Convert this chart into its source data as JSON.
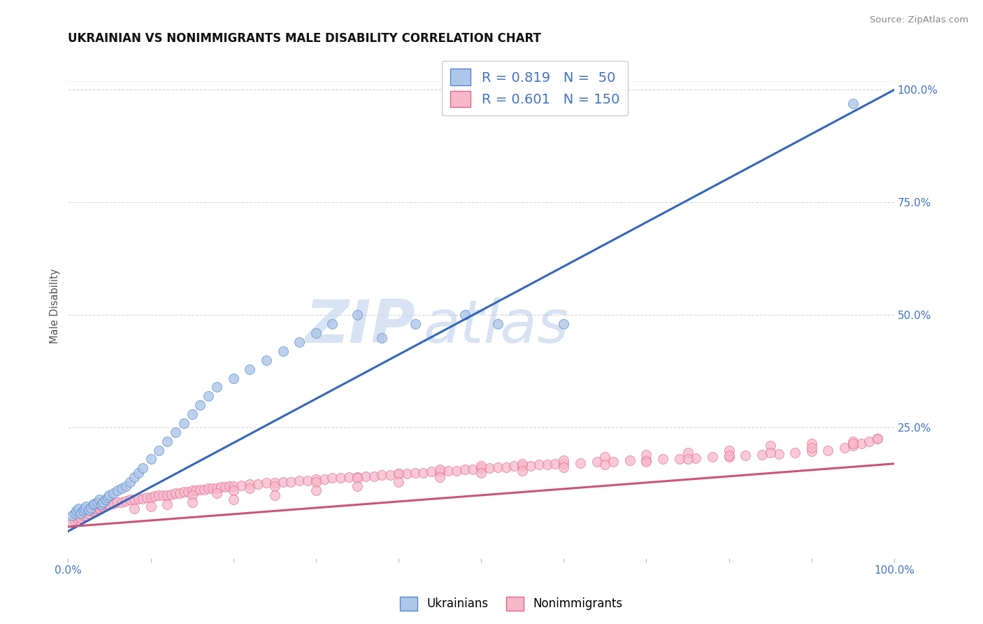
{
  "title": "UKRAINIAN VS NONIMMIGRANTS MALE DISABILITY CORRELATION CHART",
  "source_text": "Source: ZipAtlas.com",
  "ylabel": "Male Disability",
  "background_color": "#ffffff",
  "grid_color": "#cccccc",
  "title_fontsize": 12,
  "tick_label_color": "#4472c4",
  "ukrainian_color": "#aec6e8",
  "ukrainian_edge_color": "#5588cc",
  "ukrainian_line_color": "#3366bb",
  "nonimmigrant_color": "#f8b8cc",
  "nonimmigrant_edge_color": "#dd6688",
  "nonimmigrant_line_color": "#cc5577",
  "R_ukrainian": 0.819,
  "N_ukrainian": 50,
  "R_nonimmigrant": 0.601,
  "N_nonimmigrant": 150,
  "ukr_line_x0": 0.0,
  "ukr_line_y0": 0.02,
  "ukr_line_x1": 1.0,
  "ukr_line_y1": 1.0,
  "nonimm_line_x0": 0.0,
  "nonimm_line_y0": 0.03,
  "nonimm_line_x1": 1.0,
  "nonimm_line_y1": 0.17,
  "xlim": [
    0.0,
    1.0
  ],
  "ylim": [
    -0.04,
    1.08
  ],
  "ukr_scatter_x": [
    0.005,
    0.008,
    0.01,
    0.012,
    0.015,
    0.018,
    0.02,
    0.022,
    0.025,
    0.028,
    0.03,
    0.032,
    0.035,
    0.038,
    0.04,
    0.042,
    0.045,
    0.048,
    0.05,
    0.055,
    0.06,
    0.065,
    0.07,
    0.075,
    0.08,
    0.085,
    0.09,
    0.1,
    0.11,
    0.12,
    0.13,
    0.14,
    0.15,
    0.16,
    0.17,
    0.18,
    0.2,
    0.22,
    0.24,
    0.26,
    0.28,
    0.3,
    0.32,
    0.35,
    0.38,
    0.42,
    0.48,
    0.52,
    0.6,
    0.95
  ],
  "ukr_scatter_y": [
    0.055,
    0.06,
    0.065,
    0.07,
    0.06,
    0.065,
    0.07,
    0.075,
    0.068,
    0.072,
    0.08,
    0.082,
    0.085,
    0.09,
    0.08,
    0.085,
    0.09,
    0.095,
    0.1,
    0.105,
    0.11,
    0.115,
    0.12,
    0.13,
    0.14,
    0.15,
    0.16,
    0.18,
    0.2,
    0.22,
    0.24,
    0.26,
    0.28,
    0.3,
    0.32,
    0.34,
    0.36,
    0.38,
    0.4,
    0.42,
    0.44,
    0.46,
    0.48,
    0.5,
    0.45,
    0.48,
    0.5,
    0.48,
    0.48,
    0.97
  ],
  "nonimm_scatter_x": [
    0.005,
    0.007,
    0.01,
    0.012,
    0.015,
    0.018,
    0.02,
    0.022,
    0.025,
    0.028,
    0.03,
    0.032,
    0.035,
    0.038,
    0.04,
    0.042,
    0.045,
    0.048,
    0.05,
    0.055,
    0.06,
    0.065,
    0.07,
    0.075,
    0.08,
    0.085,
    0.09,
    0.095,
    0.1,
    0.105,
    0.11,
    0.115,
    0.12,
    0.125,
    0.13,
    0.135,
    0.14,
    0.145,
    0.15,
    0.155,
    0.16,
    0.165,
    0.17,
    0.175,
    0.18,
    0.185,
    0.19,
    0.195,
    0.2,
    0.21,
    0.22,
    0.23,
    0.24,
    0.25,
    0.26,
    0.27,
    0.28,
    0.29,
    0.3,
    0.31,
    0.32,
    0.33,
    0.34,
    0.35,
    0.36,
    0.37,
    0.38,
    0.39,
    0.4,
    0.41,
    0.42,
    0.43,
    0.44,
    0.45,
    0.46,
    0.47,
    0.48,
    0.49,
    0.5,
    0.51,
    0.52,
    0.53,
    0.54,
    0.55,
    0.56,
    0.57,
    0.58,
    0.59,
    0.6,
    0.62,
    0.64,
    0.66,
    0.68,
    0.7,
    0.72,
    0.74,
    0.76,
    0.78,
    0.8,
    0.82,
    0.84,
    0.86,
    0.88,
    0.9,
    0.92,
    0.94,
    0.95,
    0.96,
    0.97,
    0.98,
    0.15,
    0.18,
    0.2,
    0.22,
    0.25,
    0.3,
    0.35,
    0.4,
    0.45,
    0.5,
    0.55,
    0.6,
    0.65,
    0.7,
    0.75,
    0.8,
    0.85,
    0.9,
    0.95,
    0.98,
    0.08,
    0.1,
    0.12,
    0.15,
    0.2,
    0.25,
    0.3,
    0.35,
    0.4,
    0.45,
    0.5,
    0.55,
    0.6,
    0.65,
    0.7,
    0.75,
    0.8,
    0.85,
    0.9,
    0.95
  ],
  "nonimm_scatter_y": [
    0.04,
    0.045,
    0.05,
    0.055,
    0.05,
    0.055,
    0.06,
    0.055,
    0.06,
    0.065,
    0.065,
    0.07,
    0.07,
    0.072,
    0.075,
    0.075,
    0.078,
    0.08,
    0.08,
    0.082,
    0.085,
    0.085,
    0.088,
    0.09,
    0.09,
    0.092,
    0.092,
    0.095,
    0.095,
    0.098,
    0.1,
    0.1,
    0.1,
    0.102,
    0.105,
    0.105,
    0.108,
    0.108,
    0.11,
    0.11,
    0.112,
    0.112,
    0.115,
    0.115,
    0.115,
    0.118,
    0.118,
    0.12,
    0.12,
    0.122,
    0.125,
    0.125,
    0.128,
    0.128,
    0.13,
    0.13,
    0.132,
    0.132,
    0.135,
    0.135,
    0.138,
    0.138,
    0.14,
    0.14,
    0.142,
    0.142,
    0.145,
    0.145,
    0.148,
    0.148,
    0.15,
    0.15,
    0.152,
    0.152,
    0.155,
    0.155,
    0.158,
    0.158,
    0.16,
    0.16,
    0.162,
    0.162,
    0.165,
    0.165,
    0.165,
    0.168,
    0.168,
    0.17,
    0.17,
    0.172,
    0.175,
    0.175,
    0.178,
    0.178,
    0.18,
    0.18,
    0.182,
    0.185,
    0.185,
    0.188,
    0.19,
    0.192,
    0.195,
    0.198,
    0.2,
    0.205,
    0.21,
    0.215,
    0.22,
    0.225,
    0.1,
    0.105,
    0.11,
    0.115,
    0.12,
    0.13,
    0.138,
    0.148,
    0.158,
    0.165,
    0.17,
    0.178,
    0.185,
    0.19,
    0.195,
    0.2,
    0.21,
    0.215,
    0.22,
    0.225,
    0.07,
    0.075,
    0.08,
    0.085,
    0.09,
    0.1,
    0.11,
    0.12,
    0.13,
    0.14,
    0.15,
    0.155,
    0.162,
    0.168,
    0.175,
    0.18,
    0.188,
    0.195,
    0.205,
    0.215
  ]
}
